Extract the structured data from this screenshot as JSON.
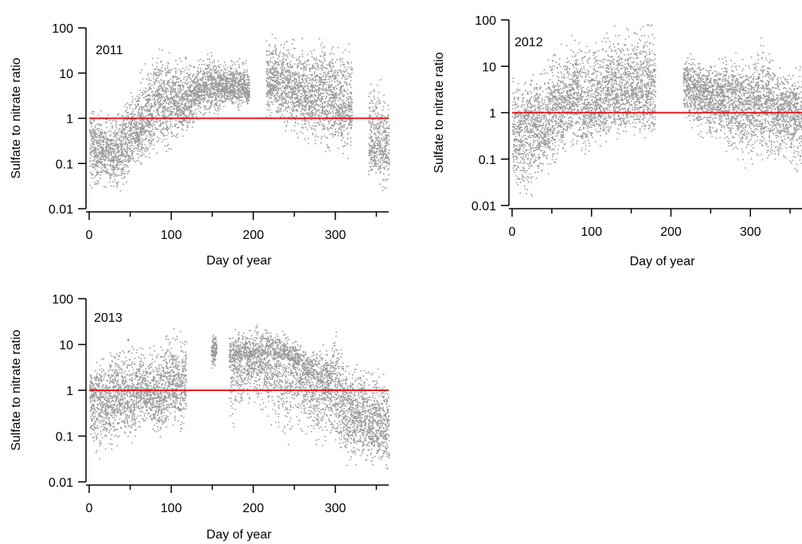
{
  "figure": {
    "colors": {
      "points": "#999999",
      "reference_line": "#e60000",
      "axis": "#000000"
    }
  },
  "chart_data": [
    {
      "type": "scatter",
      "panel_label": "2011",
      "xlabel": "Day of year",
      "ylabel": "Sulfate to nitrate ratio",
      "xlim": [
        0,
        365
      ],
      "ylim": [
        0.01,
        100
      ],
      "yscale": "log",
      "x_ticks": [
        "0",
        "100",
        "200",
        "300"
      ],
      "y_ticks": [
        "0.01",
        "0.1",
        "1",
        "10",
        "100"
      ],
      "reference_line": {
        "y": 1
      },
      "series": [
        {
          "x": [
            0,
            10,
            20,
            30,
            40,
            50,
            60,
            70,
            80,
            90,
            100,
            110,
            120,
            130,
            140,
            150,
            160,
            170,
            180,
            190,
            195,
            215,
            225,
            235,
            245,
            255,
            265,
            275,
            285,
            295,
            305,
            315,
            320,
            340,
            350,
            360,
            365
          ],
          "y_low": [
            0.02,
            0.03,
            0.03,
            0.02,
            0.02,
            0.05,
            0.1,
            0.1,
            0.2,
            0.1,
            0.2,
            0.5,
            0.3,
            0.8,
            1,
            1,
            1.5,
            2,
            1.5,
            2,
            1.5,
            1,
            1,
            0.5,
            0.5,
            0.3,
            0.3,
            0.2,
            0.2,
            0.1,
            0.2,
            0.1,
            0.5,
            0.05,
            0.05,
            0.02,
            0.02
          ],
          "y_mid": [
            0.3,
            0.2,
            0.2,
            0.15,
            0.3,
            0.5,
            0.5,
            1,
            3,
            2,
            3,
            2,
            3,
            4,
            5,
            6,
            5,
            5,
            6,
            5,
            4,
            6,
            7,
            6,
            5,
            4,
            4,
            3,
            4,
            3,
            2,
            2,
            2,
            0.3,
            0.3,
            0.2,
            0.2
          ],
          "y_high": [
            2,
            1.5,
            1.5,
            1,
            2,
            5,
            10,
            20,
            30,
            40,
            25,
            30,
            20,
            20,
            25,
            30,
            20,
            20,
            25,
            20,
            10,
            60,
            80,
            70,
            70,
            60,
            60,
            50,
            70,
            60,
            50,
            80,
            50,
            8,
            10,
            5,
            5
          ]
        }
      ]
    },
    {
      "type": "scatter",
      "panel_label": "2012",
      "xlabel": "Day of year",
      "ylabel": "Sulfate to nitrate ratio",
      "xlim": [
        0,
        365
      ],
      "ylim": [
        0.01,
        100
      ],
      "yscale": "log",
      "x_ticks": [
        "0",
        "100",
        "200",
        "300"
      ],
      "y_ticks": [
        "0.01",
        "0.1",
        "1",
        "10",
        "100"
      ],
      "reference_line": {
        "y": 1
      },
      "series": [
        {
          "x": [
            0,
            10,
            20,
            30,
            40,
            50,
            60,
            70,
            80,
            90,
            100,
            110,
            120,
            130,
            140,
            150,
            160,
            170,
            180,
            215,
            225,
            235,
            245,
            255,
            265,
            275,
            285,
            295,
            305,
            315,
            325,
            335,
            345,
            355,
            365
          ],
          "y_low": [
            0.02,
            0.01,
            0.01,
            0.03,
            0.05,
            0.05,
            0.1,
            0.2,
            0.1,
            0.1,
            0.2,
            0.2,
            0.2,
            0.3,
            0.2,
            0.3,
            0.3,
            0.3,
            0.3,
            0.5,
            0.5,
            0.3,
            0.3,
            0.2,
            0.2,
            0.1,
            0.1,
            0.05,
            0.1,
            0.1,
            0.1,
            0.05,
            0.1,
            0.05,
            0.05
          ],
          "y_mid": [
            0.5,
            0.4,
            0.5,
            0.5,
            0.4,
            1,
            1,
            2,
            3,
            1.5,
            1.5,
            2,
            3,
            3,
            3,
            4,
            3,
            3,
            3,
            5,
            4,
            3,
            3,
            2,
            2,
            2,
            2,
            1.5,
            2,
            1.5,
            2,
            1,
            1.5,
            1,
            1
          ],
          "y_high": [
            10,
            8,
            8,
            10,
            15,
            30,
            30,
            40,
            60,
            50,
            40,
            50,
            60,
            80,
            80,
            70,
            70,
            80,
            80,
            20,
            20,
            15,
            15,
            15,
            15,
            20,
            20,
            15,
            20,
            50,
            15,
            10,
            10,
            10,
            10
          ]
        }
      ]
    },
    {
      "type": "scatter",
      "panel_label": "2013",
      "xlabel": "Day of year",
      "ylabel": "Sulfate to nitrate ratio",
      "xlim": [
        0,
        365
      ],
      "ylim": [
        0.01,
        100
      ],
      "yscale": "log",
      "x_ticks": [
        "0",
        "100",
        "200",
        "300"
      ],
      "y_ticks": [
        "0.01",
        "0.1",
        "1",
        "10",
        "100"
      ],
      "reference_line": {
        "y": 1
      },
      "series": [
        {
          "x": [
            0,
            10,
            20,
            30,
            40,
            50,
            60,
            70,
            80,
            90,
            100,
            110,
            118,
            148,
            155,
            170,
            180,
            190,
            200,
            210,
            220,
            230,
            240,
            250,
            260,
            270,
            280,
            290,
            300,
            310,
            320,
            330,
            340,
            350,
            360,
            365
          ],
          "y_low": [
            0.05,
            0.03,
            0.05,
            0.05,
            0.1,
            0.05,
            0.1,
            0.2,
            0.1,
            0.1,
            0.2,
            0.1,
            0.1,
            3,
            3,
            0.1,
            0.2,
            0.5,
            0.5,
            0.3,
            0.2,
            0.1,
            0.05,
            0.1,
            0.1,
            0.1,
            0.05,
            0.1,
            0.05,
            0.02,
            0.02,
            0.03,
            0.02,
            0.03,
            0.02,
            0.01
          ],
          "y_mid": [
            0.8,
            0.6,
            0.5,
            0.8,
            0.8,
            0.7,
            1,
            1,
            0.8,
            0.8,
            1.5,
            1.5,
            2,
            8,
            8,
            4,
            5,
            6,
            5,
            6,
            6,
            5,
            5,
            4,
            3,
            2,
            1.5,
            1.5,
            1,
            0.5,
            0.3,
            0.3,
            0.2,
            0.15,
            0.15,
            0.2
          ],
          "y_high": [
            3,
            5,
            5,
            20,
            10,
            15,
            10,
            8,
            10,
            15,
            30,
            20,
            15,
            20,
            20,
            15,
            25,
            25,
            25,
            30,
            30,
            20,
            20,
            15,
            10,
            8,
            10,
            10,
            40,
            8,
            5,
            5,
            4,
            3,
            3,
            2
          ]
        }
      ]
    }
  ]
}
